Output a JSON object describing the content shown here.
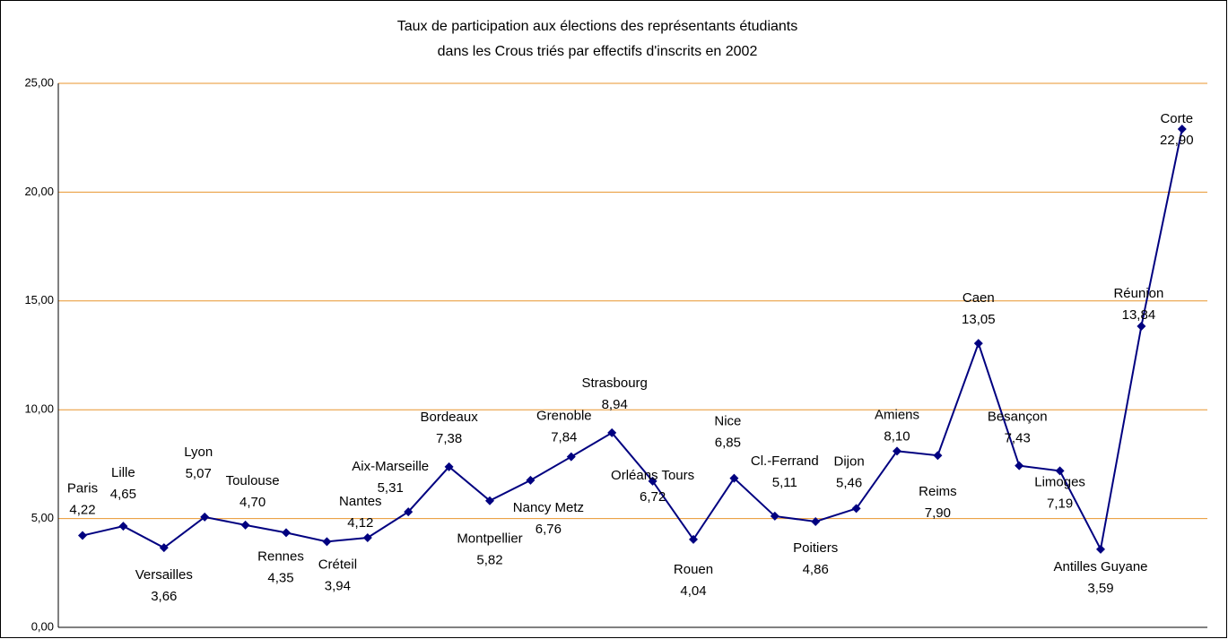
{
  "chart_data": {
    "type": "line",
    "title": [
      "Taux de participation aux élections des représentants étudiants",
      "dans les Crous triés par effectifs d'inscrits en 2002"
    ],
    "categories": [
      "Paris",
      "Lille",
      "Versailles",
      "Lyon",
      "Toulouse",
      "Rennes",
      "Créteil",
      "Nantes",
      "Aix-Marseille",
      "Bordeaux",
      "Montpellier",
      "Nancy Metz",
      "Grenoble",
      "Strasbourg",
      "Orléans Tours",
      "Rouen",
      "Nice",
      "Cl.-Ferrand",
      "Poitiers",
      "Dijon",
      "Amiens",
      "Reims",
      "Caen",
      "Besançon",
      "Limoges",
      "Antilles Guyane",
      "Réunion",
      "Corte"
    ],
    "series": [
      {
        "color": "#000080",
        "values": [
          4.22,
          4.65,
          3.66,
          5.07,
          4.7,
          4.35,
          3.94,
          4.12,
          5.31,
          7.38,
          5.82,
          6.76,
          7.84,
          8.94,
          6.72,
          4.04,
          6.85,
          5.11,
          4.86,
          5.46,
          8.1,
          7.9,
          13.05,
          7.43,
          7.19,
          3.59,
          13.84,
          22.9
        ],
        "value_labels": [
          "4,22",
          "4,65",
          "3,66",
          "5,07",
          "4,70",
          "4,35",
          "3,94",
          "4,12",
          "5,31",
          "7,38",
          "5,82",
          "6,76",
          "7,84",
          "8,94",
          "6,72",
          "4,04",
          "6,85",
          "5,11",
          "4,86",
          "5,46",
          "8,10",
          "7,90",
          "13,05",
          "7,43",
          "7,19",
          "3,59",
          "13,84",
          "22,90"
        ]
      }
    ],
    "ylim": [
      0,
      25
    ],
    "yticks": [
      {
        "value": 0,
        "label": "0,00"
      },
      {
        "value": 5,
        "label": "5,00"
      },
      {
        "value": 10,
        "label": "10,00"
      },
      {
        "value": 15,
        "label": "15,00"
      },
      {
        "value": 20,
        "label": "20,00"
      },
      {
        "value": 25,
        "label": "25,00"
      }
    ],
    "grid": true,
    "grid_color": "#e8962e"
  }
}
